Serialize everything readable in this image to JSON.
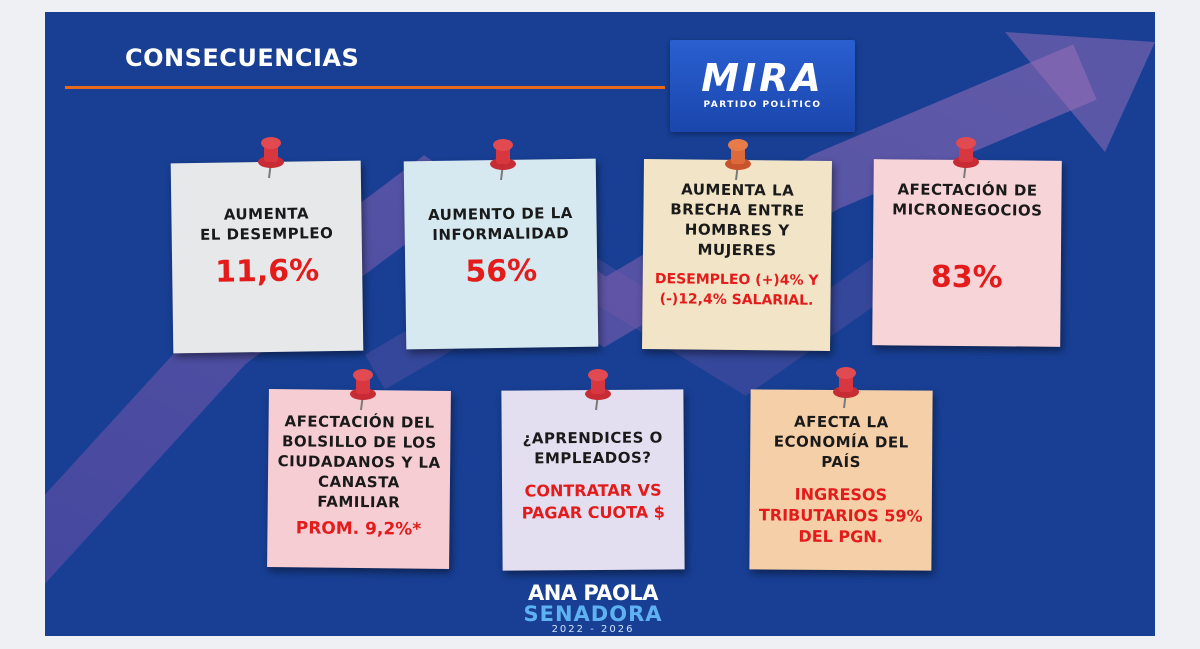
{
  "title": "CONSECUENCIAS",
  "logo": {
    "name": "MIRA",
    "subtitle": "PARTIDO POLÍTICO"
  },
  "colors": {
    "background": "#183f94",
    "accent_line": "#e8681c",
    "stat": "#e31b1b",
    "pin": "#d8373f"
  },
  "notes": [
    {
      "text_lines": [
        "AUMENTA",
        "EL DESEMPLEO"
      ],
      "stat_lines": [
        "11,6%"
      ],
      "color": "#e7e8ea"
    },
    {
      "text_lines": [
        "AUMENTO DE LA",
        "INFORMALIDAD"
      ],
      "stat_lines": [
        "56%"
      ],
      "color": "#d6e9f0"
    },
    {
      "text_lines": [
        "AUMENTA LA",
        "BRECHA ENTRE",
        "HOMBRES Y",
        "MUJERES"
      ],
      "stat_lines": [
        "DESEMPLEO (+)4% Y",
        "(-)12,4% SALARIAL."
      ],
      "color": "#f2e4c6"
    },
    {
      "text_lines": [
        "AFECTACIÓN DE",
        "MICRONEGOCIOS"
      ],
      "stat_lines": [
        "83%"
      ],
      "color": "#f7d4d8"
    },
    {
      "text_lines": [
        "AFECTACIÓN DEL",
        "BOLSILLO DE LOS",
        "CIUDADANOS Y LA",
        "CANASTA FAMILIAR"
      ],
      "stat_lines": [
        "PROM. 9,2%*"
      ],
      "color": "#f5cdd3"
    },
    {
      "text_lines": [
        "¿APRENDICES O",
        "EMPLEADOS?"
      ],
      "stat_lines": [
        "CONTRATAR VS",
        "PAGAR CUOTA $"
      ],
      "color": "#e3dff0"
    },
    {
      "text_lines": [
        "AFECTA LA",
        "ECONOMÍA DEL",
        "PAÍS"
      ],
      "stat_lines": [
        "INGRESOS",
        "TRIBUTARIOS 59%",
        "DEL PGN."
      ],
      "color": "#f5cfa7"
    }
  ],
  "footer": {
    "name": "ANA PAOLA",
    "role": "SENADORA",
    "years": "2022 - 2026"
  }
}
